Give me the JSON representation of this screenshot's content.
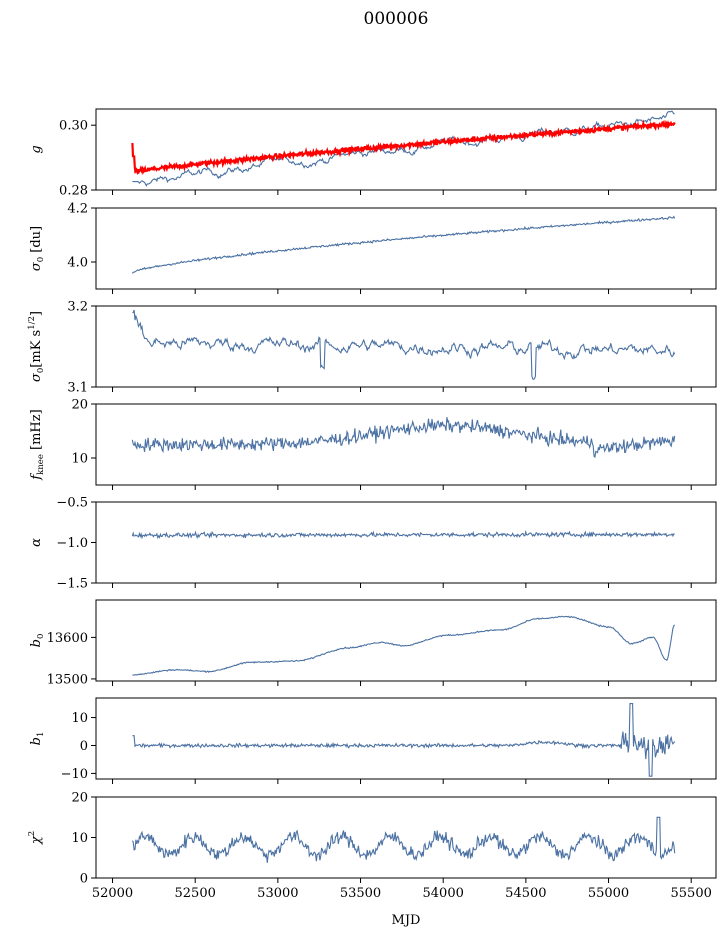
{
  "figure_title": "000006",
  "x_label": "MJD",
  "x_ticks": [
    52000,
    52500,
    53000,
    53500,
    54000,
    54500,
    55000,
    55500
  ],
  "colors": {
    "series": "#4c72a3",
    "fit": "#ff0000",
    "axis": "#000000"
  },
  "chart_data": [
    {
      "type": "line",
      "ylabel_main": "g",
      "ylim": [
        0.28,
        0.305
      ],
      "yticks": [
        0.28,
        0.3
      ],
      "ytick_labels": [
        "0.28",
        "0.30"
      ],
      "series": [
        {
          "start": 0.2816,
          "end": 0.3022,
          "noise": 0.0012,
          "kind": "gain"
        },
        {
          "start": 0.2855,
          "end": 0.3005,
          "noise": 0.0007,
          "kind": "fit"
        }
      ]
    },
    {
      "type": "line",
      "ylabel_main": "σ",
      "ylabel_sub": "0",
      "ylabel_rest": " [du]",
      "ylim": [
        3.9,
        4.2
      ],
      "yticks": [
        4.0,
        4.2
      ],
      "ytick_labels": [
        "4.0",
        "4.2"
      ],
      "series": [
        {
          "start": 3.96,
          "end": 4.165,
          "noise": 0.004,
          "kind": "sqrt"
        }
      ]
    },
    {
      "type": "line",
      "ylabel_main": "σ",
      "ylabel_sub": "0",
      "ylabel_rest": "[mK s",
      "ylabel_sup": "1/2",
      "ylabel_end": "]",
      "ylim": [
        3.1,
        3.2
      ],
      "yticks": [
        3.1,
        3.2
      ],
      "ytick_labels": [
        "3.1",
        "3.2"
      ],
      "series": [
        {
          "start": 3.155,
          "end": 3.145,
          "noise": 0.01,
          "kind": "jitter",
          "spike_start": 3.195
        }
      ]
    },
    {
      "type": "line",
      "ylabel_main": "f",
      "ylabel_sub": "knee",
      "ylabel_rest": " [mHz]",
      "ylim": [
        5,
        20
      ],
      "yticks": [
        10,
        20
      ],
      "ytick_labels": [
        "10",
        "20"
      ],
      "series": [
        {
          "start": 12.5,
          "end": 13.5,
          "noise": 1.2,
          "kind": "hump",
          "peak": 16
        }
      ]
    },
    {
      "type": "line",
      "ylabel_main": "α",
      "ylim": [
        -1.5,
        -0.5
      ],
      "yticks": [
        -1.5,
        -1.0,
        -0.5
      ],
      "ytick_labels": [
        "−1.5",
        "−1.0",
        "−0.5"
      ],
      "series": [
        {
          "start": -0.91,
          "end": -0.9,
          "noise": 0.025,
          "kind": "flat"
        }
      ]
    },
    {
      "type": "line",
      "ylabel_main": "b",
      "ylabel_sub": "0",
      "ylim": [
        13495,
        13690
      ],
      "yticks": [
        13500,
        13600
      ],
      "ytick_labels": [
        "13500",
        "13600"
      ],
      "series": [
        {
          "start": 13510,
          "end": 13628,
          "noise": 1.5,
          "kind": "baseline"
        }
      ]
    },
    {
      "type": "line",
      "ylabel_main": "b",
      "ylabel_sub": "1",
      "ylim": [
        -12,
        17
      ],
      "yticks": [
        -10,
        0,
        10
      ],
      "ytick_labels": [
        "−10",
        "0",
        "10"
      ],
      "series": [
        {
          "start": 0,
          "end": 0,
          "noise": 0.6,
          "kind": "b1"
        }
      ]
    },
    {
      "type": "line",
      "ylabel_main": "χ",
      "ylabel_sup": "2",
      "ylim": [
        0,
        20
      ],
      "yticks": [
        0,
        10,
        20
      ],
      "ytick_labels": [
        "0",
        "10",
        "20"
      ],
      "series": [
        {
          "start": 7.5,
          "end": 8,
          "noise": 1.6,
          "kind": "chi"
        }
      ]
    }
  ],
  "x_range": [
    51900,
    55650
  ],
  "x_data_range": [
    52120,
    55400
  ]
}
